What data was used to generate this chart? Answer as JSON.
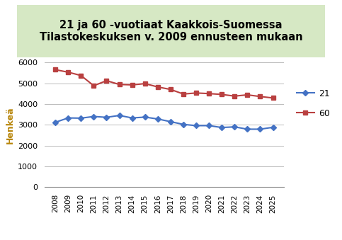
{
  "title_line1": "21 ja 60 -vuotiaat Kaakkois-Suomessa",
  "title_line2": "Tilastokeskuksen v. 2009 ennusteen mukaan",
  "title_bg_color": "#d6e8c4",
  "years": [
    2008,
    2009,
    2010,
    2011,
    2012,
    2013,
    2014,
    2015,
    2016,
    2017,
    2018,
    2019,
    2020,
    2021,
    2022,
    2023,
    2024,
    2025
  ],
  "series_21": [
    3120,
    3330,
    3320,
    3400,
    3360,
    3450,
    3330,
    3370,
    3280,
    3150,
    3020,
    2960,
    2960,
    2870,
    2900,
    2790,
    2790,
    2880
  ],
  "series_60": [
    5650,
    5530,
    5370,
    4880,
    5120,
    4940,
    4920,
    4980,
    4820,
    4700,
    4480,
    4530,
    4500,
    4460,
    4380,
    4440,
    4360,
    4290
  ],
  "color_21": "#4472c4",
  "color_60": "#b94040",
  "ylabel": "Henkeä",
  "ylim": [
    0,
    6000
  ],
  "yticks": [
    0,
    1000,
    2000,
    3000,
    4000,
    5000,
    6000
  ],
  "legend_21": "21",
  "legend_60": "60",
  "marker_21": "D",
  "marker_60": "s",
  "bg_color": "#ffffff",
  "title_fontsize": 10.5,
  "axis_fontsize": 8
}
